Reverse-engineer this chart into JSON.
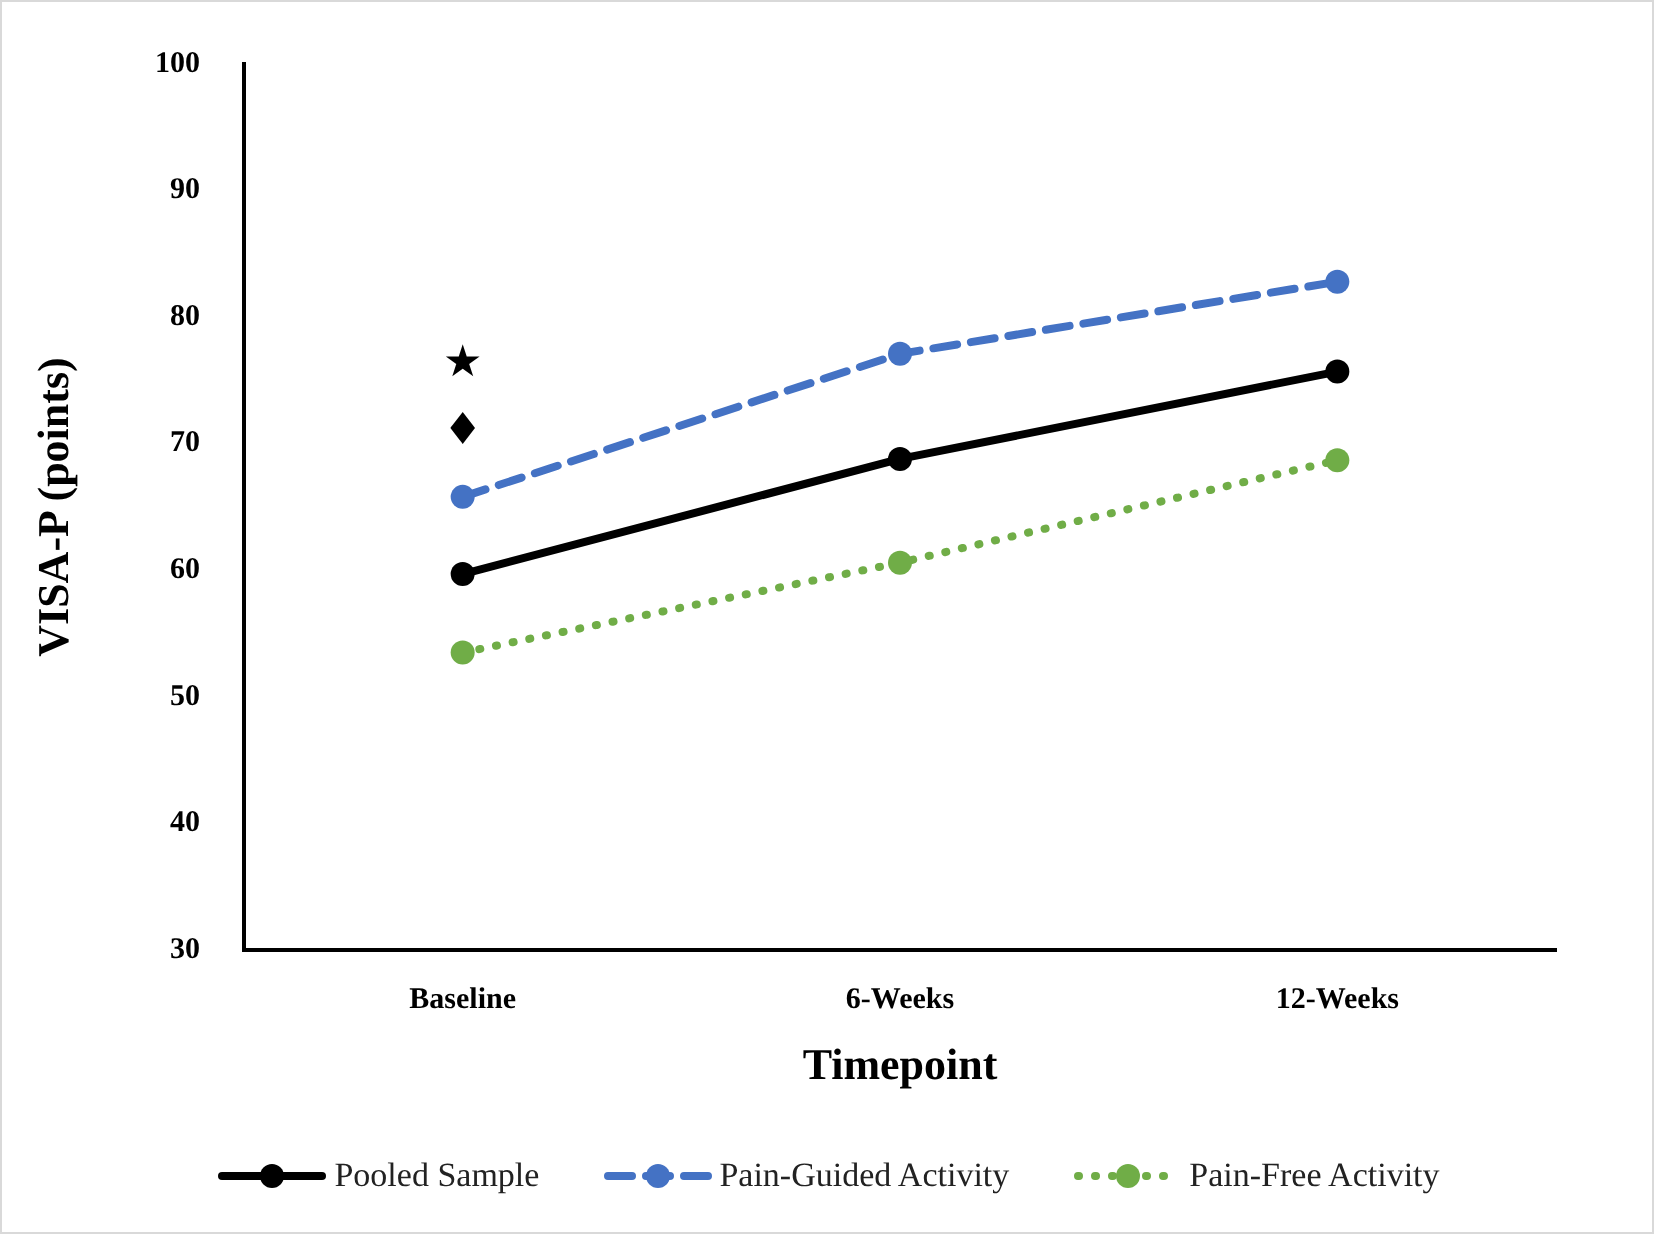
{
  "chart_data": {
    "type": "line",
    "xlabel": "Timepoint",
    "ylabel": "VISA-P (points)",
    "categories": [
      "Baseline",
      "6-Weeks",
      "12-Weeks"
    ],
    "series": [
      {
        "name": "Pooled Sample",
        "color": "#000000",
        "values": [
          59.7,
          68.8,
          75.7
        ],
        "line_style": "solid"
      },
      {
        "name": "Pain-Guided Activity",
        "color": "#4472c4",
        "values": [
          65.8,
          77.1,
          82.8
        ],
        "line_style": "dashed"
      },
      {
        "name": "Pain-Free Activity",
        "color": "#70ad47",
        "values": [
          53.5,
          60.6,
          68.7
        ],
        "line_style": "dotted"
      }
    ],
    "ylim": [
      30,
      100
    ],
    "yticks": [
      30,
      40,
      50,
      60,
      70,
      80,
      90,
      100
    ],
    "grid": false,
    "legend": "bottom",
    "marker": "circle",
    "annotations": [
      "★",
      "♦"
    ]
  }
}
